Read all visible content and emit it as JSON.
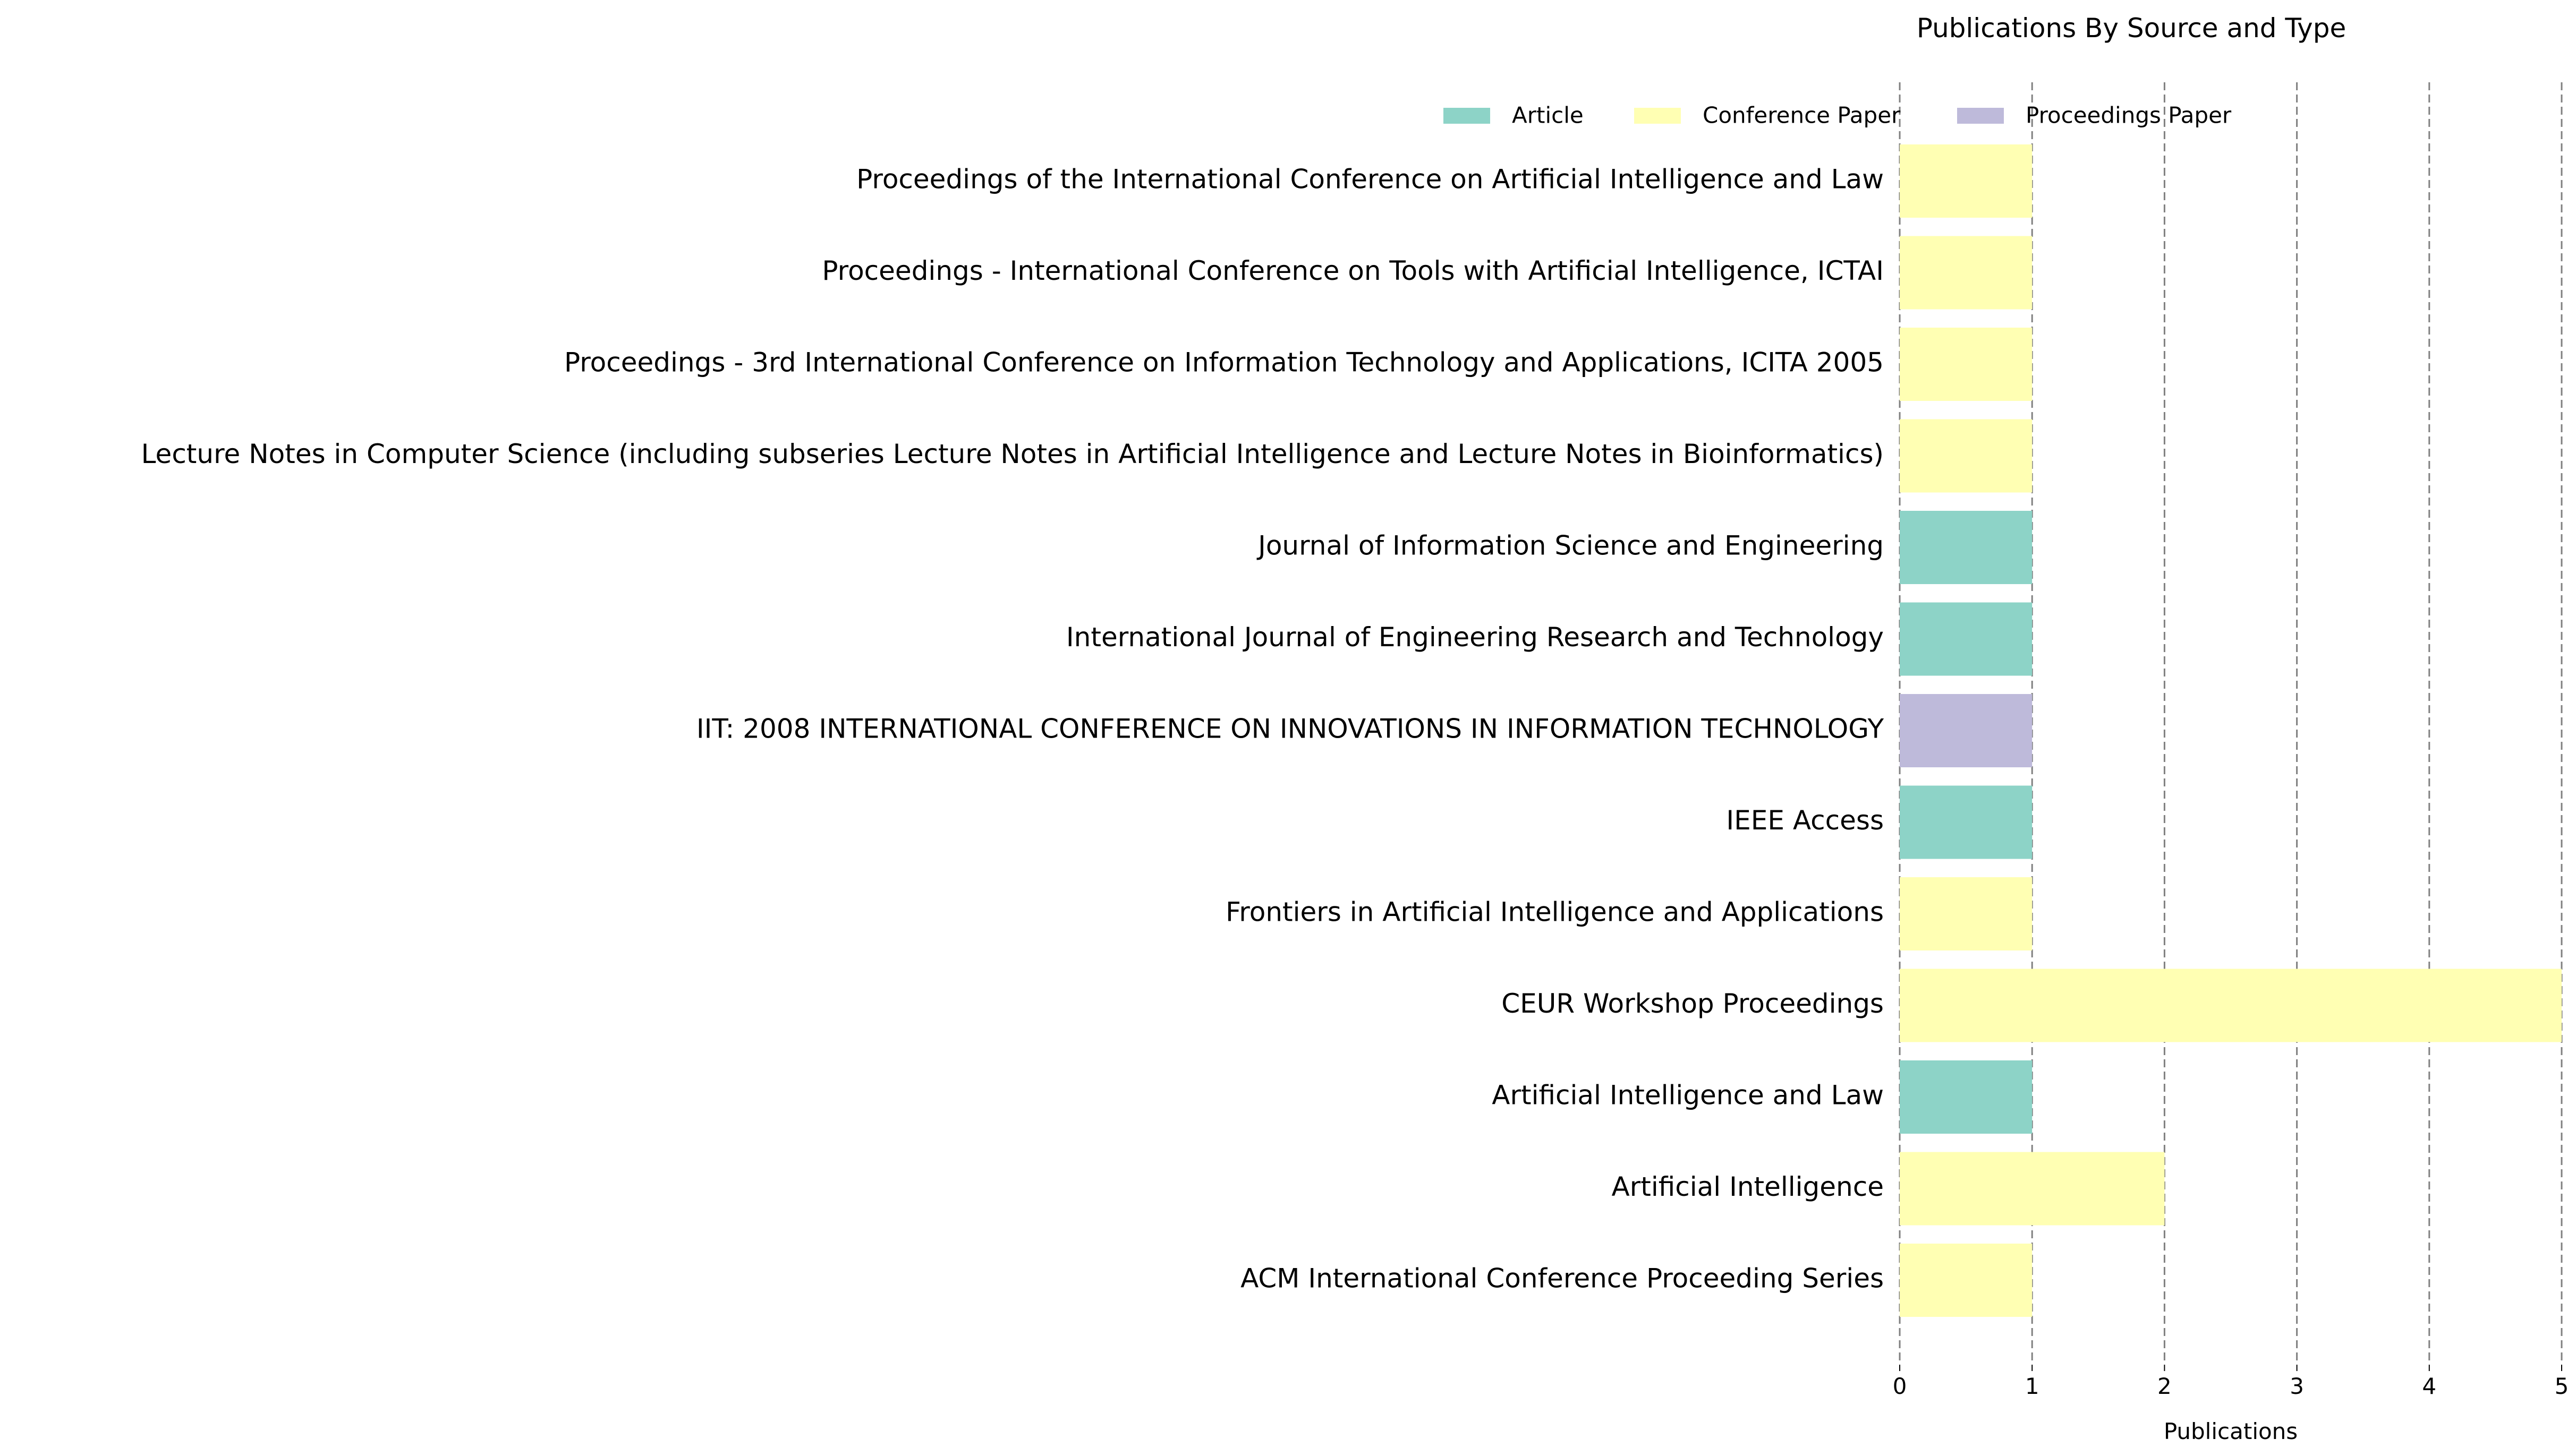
{
  "chart_data": {
    "type": "bar",
    "orientation": "horizontal",
    "title": "Publications By Source and Type",
    "xlabel": "Publications",
    "ylabel": "",
    "xlim": [
      0,
      5
    ],
    "xticks": [
      "0",
      "1",
      "2",
      "3",
      "4",
      "5"
    ],
    "grid": "vertical dashed",
    "legend_position": "top",
    "series_colors": {
      "Article": "#8dd3c7",
      "Conference Paper": "#ffffb3",
      "Proceedings Paper": "#bebada"
    },
    "legend": [
      {
        "name": "Article",
        "color": "#8dd3c7"
      },
      {
        "name": "Conference Paper",
        "color": "#ffffb3"
      },
      {
        "name": "Proceedings Paper",
        "color": "#bebada"
      }
    ],
    "categories": [
      {
        "source": "Proceedings of the International Conference on Artificial Intelligence and Law",
        "type": "Conference Paper",
        "value": 1
      },
      {
        "source": "Proceedings - International Conference on Tools with Artificial Intelligence, ICTAI",
        "type": "Conference Paper",
        "value": 1
      },
      {
        "source": "Proceedings - 3rd International Conference on Information Technology and Applications, ICITA 2005",
        "type": "Conference Paper",
        "value": 1
      },
      {
        "source": "Lecture Notes in Computer Science (including subseries Lecture Notes in Artificial Intelligence and Lecture Notes in Bioinformatics)",
        "type": "Conference Paper",
        "value": 1
      },
      {
        "source": "Journal of Information Science and Engineering",
        "type": "Article",
        "value": 1
      },
      {
        "source": "International Journal of Engineering Research and Technology",
        "type": "Article",
        "value": 1
      },
      {
        "source": "IIT: 2008 INTERNATIONAL CONFERENCE ON INNOVATIONS IN INFORMATION TECHNOLOGY",
        "type": "Proceedings Paper",
        "value": 1
      },
      {
        "source": "IEEE Access",
        "type": "Article",
        "value": 1
      },
      {
        "source": "Frontiers in Artificial Intelligence and Applications",
        "type": "Conference Paper",
        "value": 1
      },
      {
        "source": "CEUR Workshop Proceedings",
        "type": "Conference Paper",
        "value": 5
      },
      {
        "source": "Artificial Intelligence and Law",
        "type": "Article",
        "value": 1
      },
      {
        "source": "Artificial Intelligence",
        "type": "Conference Paper",
        "value": 2
      },
      {
        "source": "ACM International Conference Proceeding Series",
        "type": "Conference Paper",
        "value": 1
      }
    ]
  }
}
